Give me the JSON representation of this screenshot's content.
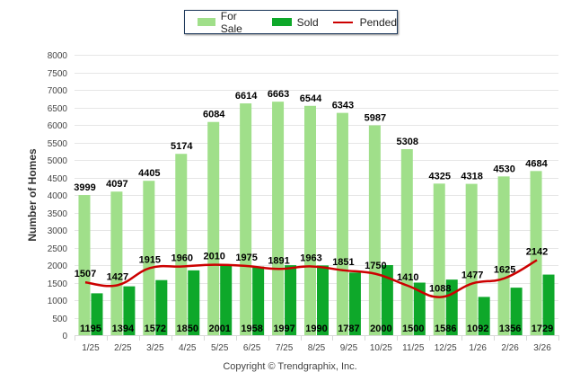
{
  "legend": {
    "items": [
      {
        "label": "For Sale",
        "color": "#a0df8a"
      },
      {
        "label": "Sold",
        "color": "#0ea82a"
      },
      {
        "label": "Pended",
        "color": "#cc0000"
      }
    ]
  },
  "copyright": "Copyright © Trendgraphix, Inc.",
  "chart_data": {
    "type": "bar",
    "title": "",
    "xlabel": "",
    "ylabel": "Number of Homes",
    "ylim": [
      0,
      8000
    ],
    "yticks": [
      0,
      500,
      1000,
      1500,
      2000,
      2500,
      3000,
      3500,
      4000,
      4500,
      5000,
      5500,
      6000,
      6500,
      7000,
      7500,
      8000
    ],
    "grid": true,
    "legend_position": "top-center",
    "categories": [
      "1/25",
      "2/25",
      "3/25",
      "4/25",
      "5/25",
      "6/25",
      "7/25",
      "8/25",
      "9/25",
      "10/25",
      "11/25",
      "12/25",
      "1/26",
      "2/26",
      "3/26"
    ],
    "series": [
      {
        "name": "For Sale",
        "type": "bar",
        "color": "#a0df8a",
        "values": [
          3999,
          4097,
          4405,
          5174,
          6084,
          6614,
          6663,
          6544,
          6343,
          5987,
          5308,
          4325,
          4318,
          4530,
          4684
        ]
      },
      {
        "name": "Sold",
        "type": "bar",
        "color": "#0ea82a",
        "values": [
          1195,
          1394,
          1572,
          1850,
          2001,
          1958,
          1997,
          1990,
          1787,
          2000,
          1500,
          1586,
          1092,
          1356,
          1729
        ]
      },
      {
        "name": "Pended",
        "type": "line",
        "color": "#cc0000",
        "values": [
          1507,
          1427,
          1915,
          1960,
          2010,
          1975,
          1891,
          1963,
          1851,
          1750,
          1410,
          1088,
          1477,
          1625,
          2142
        ]
      }
    ]
  }
}
